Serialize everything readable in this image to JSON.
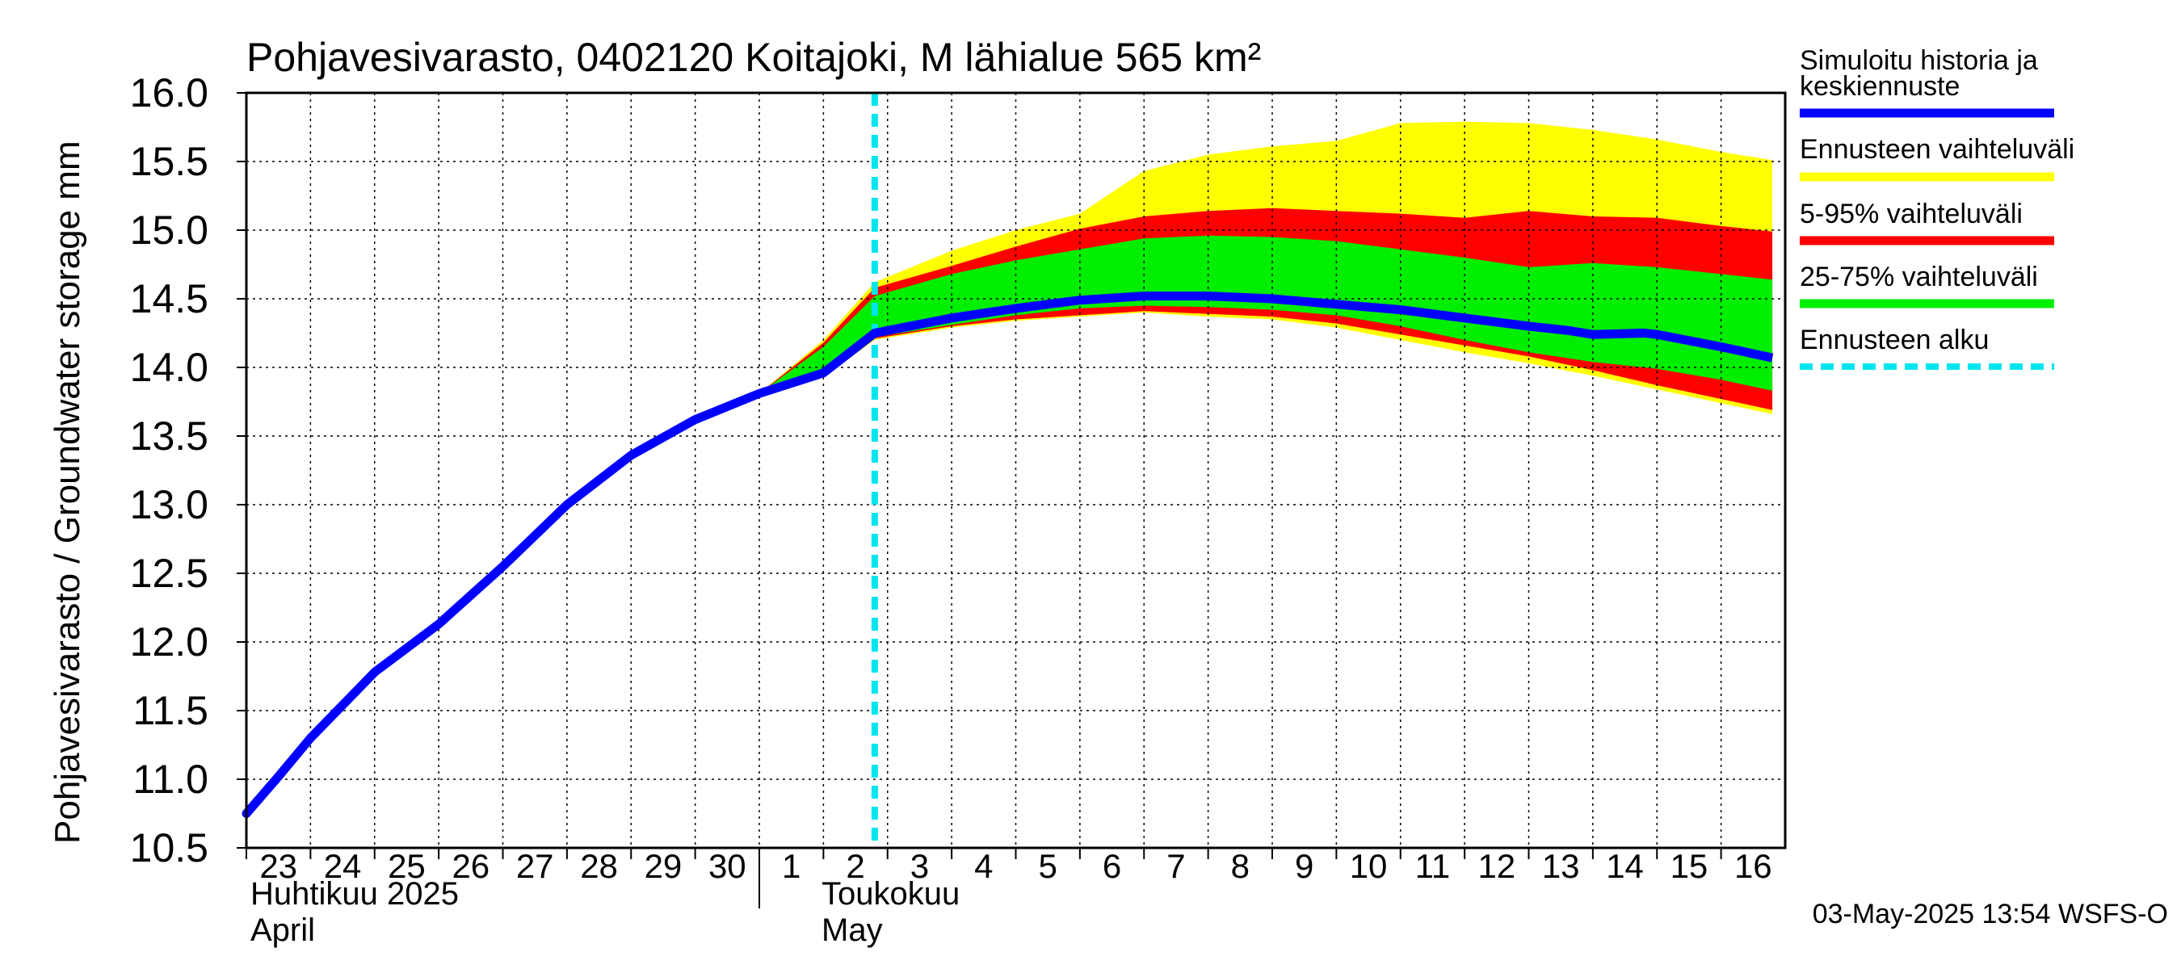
{
  "chart_data": {
    "type": "area",
    "title": "Pohjavesivarasto, 0402120 Koitajoki, M lähialue 565 km²",
    "ylabel": "Pohjavesivarasto / Groundwater storage   mm",
    "ylim": [
      10.5,
      16.0
    ],
    "yticks": [
      "10.5",
      "11.0",
      "11.5",
      "12.0",
      "12.5",
      "13.0",
      "13.5",
      "14.0",
      "14.5",
      "15.0",
      "15.5",
      "16.0"
    ],
    "x_day_start": -10,
    "x_day_end": 14,
    "x_tick_labels": [
      {
        "day": -10,
        "label": "23"
      },
      {
        "day": -9,
        "label": "24"
      },
      {
        "day": -8,
        "label": "25"
      },
      {
        "day": -7,
        "label": "26"
      },
      {
        "day": -6,
        "label": "27"
      },
      {
        "day": -5,
        "label": "28"
      },
      {
        "day": -4,
        "label": "29"
      },
      {
        "day": -3,
        "label": "30"
      },
      {
        "day": -2,
        "label": "1"
      },
      {
        "day": -1,
        "label": "2"
      },
      {
        "day": 0,
        "label": "3"
      },
      {
        "day": 1,
        "label": "4"
      },
      {
        "day": 2,
        "label": "5"
      },
      {
        "day": 3,
        "label": "6"
      },
      {
        "day": 4,
        "label": "7"
      },
      {
        "day": 5,
        "label": "8"
      },
      {
        "day": 6,
        "label": "9"
      },
      {
        "day": 7,
        "label": "10"
      },
      {
        "day": 8,
        "label": "11"
      },
      {
        "day": 9,
        "label": "12"
      },
      {
        "day": 10,
        "label": "13"
      },
      {
        "day": 11,
        "label": "14"
      },
      {
        "day": 12,
        "label": "15"
      },
      {
        "day": 13,
        "label": "16"
      }
    ],
    "month_labels": {
      "april_fi": "Huhtikuu  2025",
      "april_en": "April",
      "may_fi": "Toukokuu",
      "may_en": "May"
    },
    "month_boundary_day": -2,
    "forecast_start_day": -0.2,
    "history": {
      "x": [
        -10,
        -9.5,
        -9,
        -8,
        -7,
        -6,
        -5,
        -4,
        -3,
        -2,
        -1,
        -0.2
      ],
      "y": [
        10.75,
        11.02,
        11.3,
        11.78,
        12.13,
        12.55,
        13.0,
        13.36,
        13.62,
        13.81,
        13.96,
        14.25
      ]
    },
    "median_forecast": {
      "x": [
        -0.2,
        1,
        2,
        3,
        4,
        5,
        6,
        7,
        8,
        9,
        10,
        10.6,
        11,
        11.8,
        12,
        13,
        13.8
      ],
      "y": [
        14.25,
        14.36,
        14.43,
        14.49,
        14.52,
        14.52,
        14.5,
        14.46,
        14.42,
        14.36,
        14.3,
        14.27,
        14.24,
        14.25,
        14.24,
        14.15,
        14.07
      ]
    },
    "band_x": [
      -2,
      -1,
      -0.2,
      1,
      2,
      3,
      4,
      5,
      6,
      7,
      8,
      9,
      10,
      11,
      12,
      13,
      13.8
    ],
    "range_max": [
      13.81,
      14.2,
      14.62,
      14.85,
      15.0,
      15.12,
      15.43,
      15.55,
      15.61,
      15.65,
      15.78,
      15.79,
      15.78,
      15.73,
      15.66,
      15.57,
      15.51
    ],
    "p95": [
      13.81,
      14.18,
      14.58,
      14.74,
      14.88,
      15.01,
      15.1,
      15.14,
      15.16,
      15.14,
      15.12,
      15.09,
      15.14,
      15.1,
      15.09,
      15.03,
      14.99
    ],
    "p75": [
      13.81,
      14.15,
      14.52,
      14.68,
      14.78,
      14.86,
      14.94,
      14.96,
      14.95,
      14.92,
      14.86,
      14.8,
      14.73,
      14.76,
      14.73,
      14.68,
      14.64
    ],
    "p25": [
      13.81,
      13.94,
      14.22,
      14.31,
      14.38,
      14.43,
      14.45,
      14.44,
      14.42,
      14.38,
      14.3,
      14.2,
      14.11,
      14.04,
      13.99,
      13.91,
      13.83
    ],
    "p5": [
      13.81,
      13.93,
      14.21,
      14.3,
      14.35,
      14.38,
      14.41,
      14.39,
      14.37,
      14.32,
      14.24,
      14.16,
      14.08,
      13.98,
      13.87,
      13.77,
      13.69
    ],
    "range_min": [
      13.81,
      13.93,
      14.2,
      14.29,
      14.34,
      14.37,
      14.4,
      14.37,
      14.35,
      14.29,
      14.2,
      14.11,
      14.03,
      13.94,
      13.84,
      13.74,
      13.66
    ],
    "legend": {
      "hist_line1": "Simuloitu historia ja",
      "hist_line2": "keskiennuste",
      "range": "Ennusteen vaihteluväli",
      "p5_95": "5-95% vaihteluväli",
      "p25_75": "25-75% vaihteluväli",
      "start": "Ennusteen alku"
    },
    "colors": {
      "history": "#0000ff",
      "range": "#ffff00",
      "p5_95": "#ff0000",
      "p25_75": "#00ee00",
      "start": "#00e5ee",
      "grid": "#000000"
    },
    "timestamp": "03-May-2025 13:54 WSFS-O"
  }
}
